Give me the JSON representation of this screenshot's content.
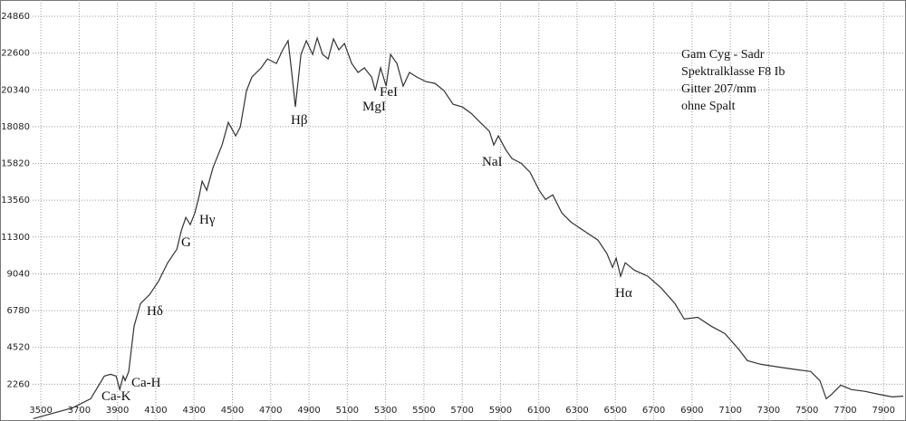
{
  "chart_data": {
    "type": "line",
    "x": [
      3460,
      3666,
      3760,
      3831,
      3864,
      3893,
      3912,
      3930,
      3940,
      3959,
      3987,
      4020,
      4068,
      4115,
      4162,
      4210,
      4233,
      4257,
      4280,
      4304,
      4328,
      4342,
      4366,
      4399,
      4446,
      4479,
      4517,
      4541,
      4574,
      4602,
      4650,
      4683,
      4730,
      4763,
      4791,
      4810,
      4829,
      4858,
      4886,
      4919,
      4943,
      4971,
      5000,
      5028,
      5056,
      5085,
      5123,
      5156,
      5189,
      5227,
      5246,
      5274,
      5303,
      5326,
      5359,
      5392,
      5425,
      5463,
      5510,
      5558,
      5605,
      5652,
      5700,
      5747,
      5794,
      5842,
      5865,
      5889,
      5927,
      5960,
      6007,
      6054,
      6102,
      6135,
      6173,
      6220,
      6267,
      6338,
      6409,
      6456,
      6485,
      6504,
      6527,
      6551,
      6598,
      6669,
      6740,
      6811,
      6859,
      6930,
      7000,
      7071,
      7142,
      7189,
      7260,
      7355,
      7449,
      7520,
      7568,
      7601,
      7629,
      7676,
      7733,
      7805,
      7875,
      7946,
      8003
    ],
    "series": [
      {
        "color": "#333333",
        "values": [
          145,
          810,
          1370,
          2760,
          2870,
          2760,
          1930,
          2760,
          2480,
          3040,
          5820,
          7210,
          7770,
          8600,
          9710,
          10550,
          11660,
          12500,
          12060,
          12780,
          13890,
          14730,
          14170,
          15560,
          16950,
          18340,
          17510,
          18060,
          20290,
          21130,
          21690,
          22240,
          21960,
          22800,
          23360,
          21410,
          19290,
          22520,
          23360,
          22520,
          23530,
          22520,
          22240,
          23470,
          22800,
          23190,
          21960,
          21410,
          21690,
          21130,
          20290,
          21690,
          20570,
          22520,
          21960,
          20570,
          21410,
          21130,
          20850,
          20740,
          20290,
          19460,
          19290,
          18900,
          18340,
          17790,
          16950,
          17510,
          16670,
          16120,
          15840,
          15280,
          14170,
          13610,
          13890,
          12780,
          12230,
          11660,
          11110,
          10270,
          9440,
          10000,
          8890,
          9720,
          9270,
          8890,
          8160,
          7210,
          6260,
          6370,
          5820,
          5370,
          4430,
          3710,
          3480,
          3310,
          3150,
          3040,
          2480,
          1370,
          1640,
          2200,
          1930,
          1820,
          1640,
          1480,
          1530
        ]
      }
    ],
    "xlim": [
      3457,
      8003
    ],
    "xticks": [
      3500,
      3700,
      3900,
      4100,
      4300,
      4500,
      4700,
      4900,
      5100,
      5300,
      5500,
      5700,
      5900,
      6100,
      6300,
      6500,
      6700,
      6900,
      7100,
      7300,
      7500,
      7700,
      7900
    ],
    "ylim": [
      0,
      25860
    ],
    "yticks": [
      2260,
      4520,
      6780,
      9040,
      11300,
      13560,
      15820,
      18080,
      20340,
      22600,
      24860
    ],
    "grid": true,
    "annotations": [
      "Ca-K",
      "Ca-H",
      "Hδ",
      "G",
      "Hγ",
      "Hβ",
      "MgI",
      "FeI",
      "NaI",
      "Hα"
    ],
    "info_text": [
      "Gam Cyg - Sadr",
      "Spektralklasse F8 Ib",
      "Gitter 207/mm",
      "ohne Spalt"
    ]
  }
}
